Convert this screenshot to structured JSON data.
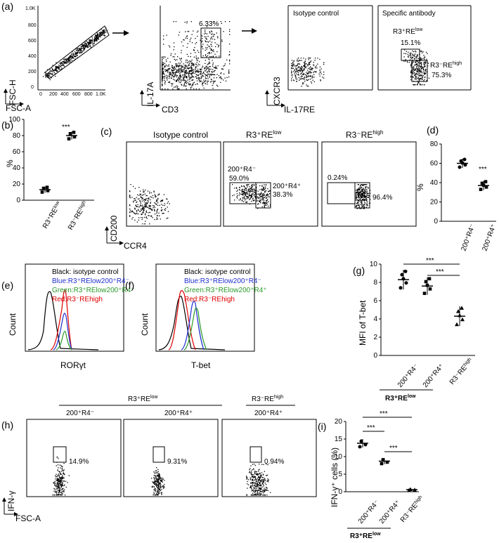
{
  "panels": {
    "a": {
      "label": "(a)",
      "p1": {
        "xlabel": "FSC-A",
        "ylabel": "FSC-H",
        "xticks": [
          "0",
          "200",
          "400",
          "600",
          "800",
          "1.0K"
        ],
        "yticks": [
          "0",
          "200",
          "400",
          "600",
          "800",
          "1.0K"
        ]
      },
      "p2": {
        "xlabel": "CD3",
        "ylabel": "IL-17A",
        "gate": "6.33%"
      },
      "p3": {
        "xlabel": "IL-17RE",
        "ylabel": "CXCR3",
        "title": "Isotype control"
      },
      "p4": {
        "title": "Specific antibody",
        "gate1_name": "R3⁺RE",
        "gate1_sup": "low",
        "gate1_val": "15.1%",
        "gate2_name": "R3⁻RE",
        "gate2_sup": "high",
        "gate2_val": "75.3%"
      }
    },
    "b": {
      "label": "(b)",
      "ylabel": "%",
      "yticks": [
        "0",
        "20",
        "40",
        "60",
        "80",
        "100"
      ],
      "sig": "***",
      "cat1": "R3⁺RE",
      "cat1_sup": "low",
      "cat2": "R3⁻RE",
      "cat2_sup": "high"
    },
    "c": {
      "label": "(c)",
      "p1": {
        "title": "Isotype control",
        "xlabel": "CCR4",
        "ylabel": "CD200"
      },
      "p2": {
        "title": "R3⁺RE",
        "title_sup": "low",
        "g1_name": "200⁺R4⁻",
        "g1_val": "59.0%",
        "g2_name": "200⁺R4⁺",
        "g2_val": "38.3%"
      },
      "p3": {
        "title": "R3⁻RE",
        "title_sup": "high",
        "g1_val": "0.24%",
        "g2_val": "96.4%"
      }
    },
    "d": {
      "label": "(d)",
      "ylabel": "%",
      "yticks": [
        "0",
        "20",
        "40",
        "60",
        "80"
      ],
      "sig": "***",
      "cat1": "200⁺R4⁻",
      "cat2": "200⁺R4⁺"
    },
    "e": {
      "label": "(e)",
      "xlabel": "RORγt",
      "ylabel": "Count",
      "legend": [
        "Black: isotype control",
        "Blue:R3⁺RElow200⁺R4⁻",
        "Green:R3⁺RElow200⁺R4⁺",
        "Red:R3⁻REhigh"
      ]
    },
    "f": {
      "label": "(f)",
      "xlabel": "T-bet",
      "ylabel": "Count",
      "legend": [
        "Black: isotype control",
        "Blue:R3⁺RElow200⁺R4⁻",
        "Green:R3⁺RElow200⁺R4⁺",
        "Red:R3⁻REhigh"
      ]
    },
    "g": {
      "label": "(g)",
      "ylabel": "MFI of T-bet",
      "yticks": [
        "0",
        "2",
        "4",
        "6",
        "8",
        "10"
      ],
      "sig": "***",
      "cat1": "200⁺R4⁻",
      "cat2": "200⁺R4⁺",
      "cat3": "R3⁻RE",
      "cat3_sup": "high",
      "group": "R3⁺RE",
      "group_sup": "low"
    },
    "h": {
      "label": "(h)",
      "ylabel": "IFN-γ",
      "xlabel": "FSC-A",
      "header_group": "R3⁺RE",
      "header_group_sup": "low",
      "col1": "200⁺R4⁻",
      "col2": "200⁺R4⁺",
      "col3_top": "R3⁻RE",
      "col3_top_sup": "high",
      "col3": "200⁺R4⁺",
      "v1": "14.9%",
      "v2": "9.31%",
      "v3": "0.94%"
    },
    "i": {
      "label": "(i)",
      "ylabel": "IFN-γ⁺ cells (%)",
      "yticks": [
        "0",
        "5",
        "10",
        "15",
        "20"
      ],
      "sig": "***",
      "cat1": "200⁺R4⁻",
      "cat2": "200⁺R4⁺",
      "cat3": "R3⁻RE",
      "cat3_sup": "high",
      "group": "R3⁺RE",
      "group_sup": "low"
    }
  },
  "chart_data": [
    {
      "type": "scatter",
      "panel": "b",
      "categories": [
        "R3+RElow",
        "R3-REhigh"
      ],
      "values": [
        13,
        80
      ],
      "ylim": [
        0,
        100
      ],
      "ylabel": "%"
    },
    {
      "type": "scatter",
      "panel": "d",
      "categories": [
        "200+R4-",
        "200+R4+"
      ],
      "values": [
        60,
        37
      ],
      "ylim": [
        0,
        80
      ],
      "ylabel": "%"
    },
    {
      "type": "scatter",
      "panel": "g",
      "categories": [
        "200+R4-",
        "200+R4+",
        "R3-REhigh"
      ],
      "values": [
        8.3,
        7.6,
        4.3
      ],
      "ylim": [
        0,
        10
      ],
      "ylabel": "MFI of T-bet"
    },
    {
      "type": "scatter",
      "panel": "i",
      "categories": [
        "200+R4-",
        "200+R4+",
        "R3-REhigh"
      ],
      "values": [
        13.8,
        8.7,
        0.6
      ],
      "ylim": [
        0,
        20
      ],
      "ylabel": "IFN-γ+ cells (%)"
    }
  ]
}
